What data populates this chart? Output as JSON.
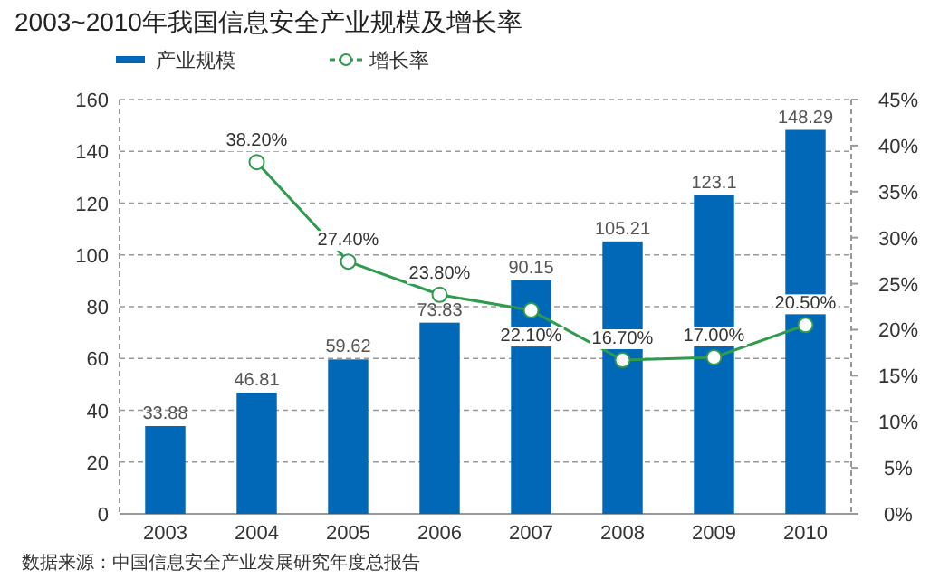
{
  "chart_data": {
    "type": "bar",
    "title": "2003~2010年我国信息安全产业规模及增长率",
    "categories": [
      "2003",
      "2004",
      "2005",
      "2006",
      "2007",
      "2008",
      "2009",
      "2010"
    ],
    "series": [
      {
        "name": "产业规模",
        "type": "bar",
        "color": "#0068b7",
        "values": [
          33.88,
          46.81,
          59.62,
          73.83,
          90.15,
          105.21,
          123.1,
          148.29
        ],
        "value_labels": [
          "33.88",
          "46.81",
          "59.62",
          "73.83",
          "90.15",
          "105.21",
          "123.1",
          "148.29"
        ]
      },
      {
        "name": "增长率",
        "type": "line",
        "axis": "y2",
        "color": "#2e9b4e",
        "values": [
          null,
          38.2,
          27.4,
          23.8,
          22.1,
          16.7,
          17.0,
          20.5
        ],
        "value_labels": [
          null,
          "38.20%",
          "27.40%",
          "23.80%",
          "22.10%",
          "16.70%",
          "17.00%",
          "20.50%"
        ]
      }
    ],
    "ylim": [
      0,
      160
    ],
    "yticks": [
      0,
      20,
      40,
      60,
      80,
      100,
      120,
      140,
      160
    ],
    "y2lim": [
      0,
      45
    ],
    "y2ticks": [
      {
        "value": 0,
        "label": "0%"
      },
      {
        "value": 5,
        "label": "5%"
      },
      {
        "value": 10,
        "label": "10%"
      },
      {
        "value": 15,
        "label": "15%"
      },
      {
        "value": 20,
        "label": "20%"
      },
      {
        "value": 25,
        "label": "25%"
      },
      {
        "value": 30,
        "label": "30%"
      },
      {
        "value": 35,
        "label": "35%"
      },
      {
        "value": 40,
        "label": "40%"
      },
      {
        "value": 45,
        "label": "45%"
      }
    ],
    "grid": "y",
    "legend": "top",
    "marker": "circle",
    "annotations": [
      "数据来源：中国信息安全产业发展研究年度总报告"
    ]
  }
}
